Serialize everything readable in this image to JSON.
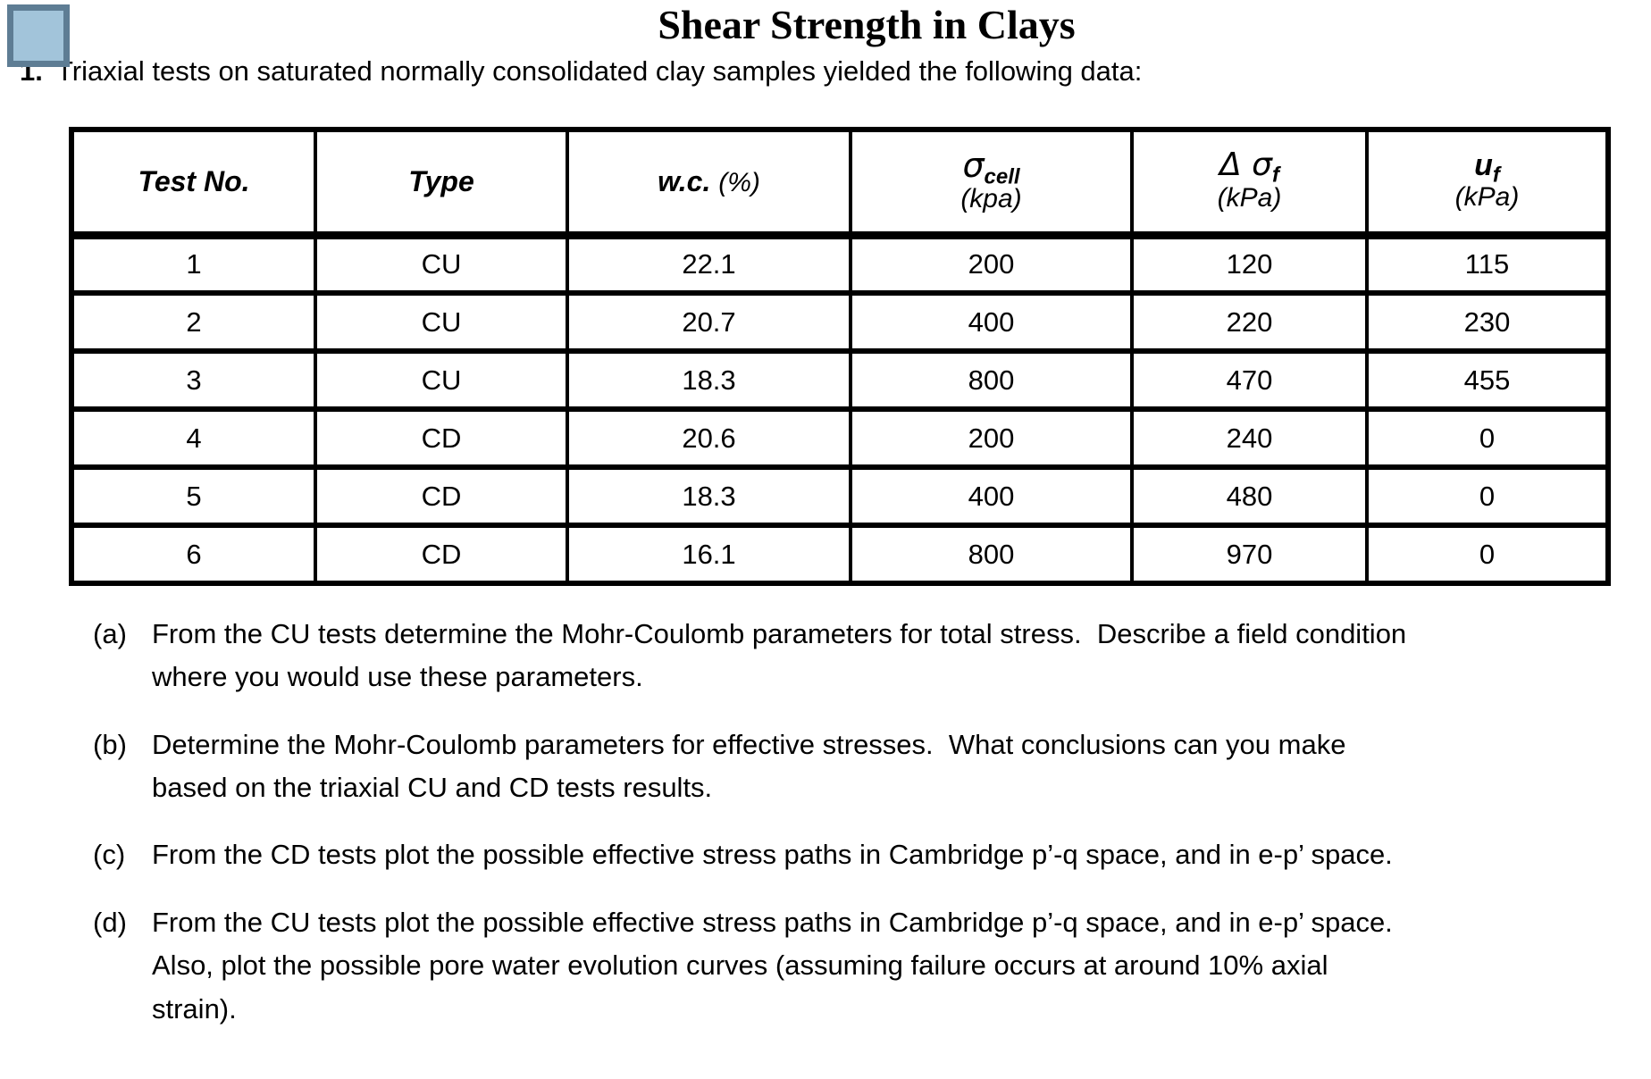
{
  "page": {
    "title": "Shear Strength in Clays",
    "item_number": "1.",
    "intro": "Triaxial tests on saturated normally consolidated clay samples yielded the following data:"
  },
  "icon": {
    "fill": "#A2C4DA",
    "border": "#5E7D94"
  },
  "table": {
    "headers": [
      {
        "label": "Test No."
      },
      {
        "label": "Type"
      },
      {
        "main": "w.c.",
        "unit": "(%)"
      },
      {
        "symbol": "σ",
        "sub": "cell",
        "unit": "(kpa)"
      },
      {
        "symbol": "Δ σ",
        "sub": "f",
        "unit": "(kPa)"
      },
      {
        "symbol": "u",
        "sub": "f",
        "unit": "(kPa)"
      }
    ],
    "rows": [
      [
        "1",
        "CU",
        "22.1",
        "200",
        "120",
        "115"
      ],
      [
        "2",
        "CU",
        "20.7",
        "400",
        "220",
        "230"
      ],
      [
        "3",
        "CU",
        "18.3",
        "800",
        "470",
        "455"
      ],
      [
        "4",
        "CD",
        "20.6",
        "200",
        "240",
        "0"
      ],
      [
        "5",
        "CD",
        "18.3",
        "400",
        "480",
        "0"
      ],
      [
        "6",
        "CD",
        "16.1",
        "800",
        "970",
        "0"
      ]
    ]
  },
  "questions": [
    {
      "label": "(a)",
      "text": "From the CU tests determine the Mohr-Coulomb parameters for total stress.  Describe a field condition where you would use these parameters."
    },
    {
      "label": "(b)",
      "text": "Determine the Mohr-Coulomb parameters for effective stresses.  What conclusions can you make based on the triaxial CU and CD tests results."
    },
    {
      "label": "(c)",
      "text": "From the CD tests plot the possible effective stress paths in Cambridge p’-q space, and in e-p’ space."
    },
    {
      "label": "(d)",
      "text": "From the CU tests plot the possible effective stress paths in Cambridge p’-q space, and in e-p’ space. Also, plot the possible pore water evolution curves (assuming failure occurs at around 10% axial strain)."
    }
  ]
}
